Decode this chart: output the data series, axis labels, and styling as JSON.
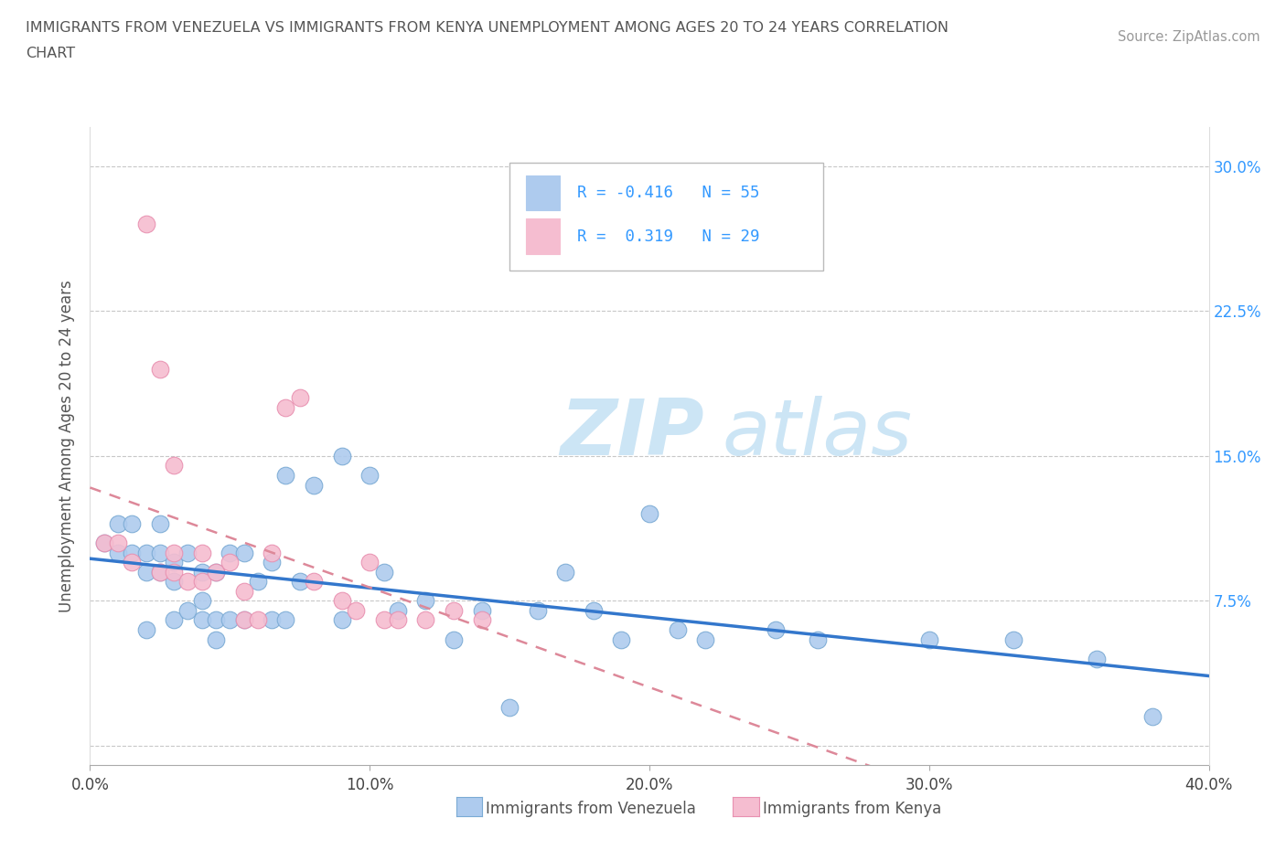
{
  "title_line1": "IMMIGRANTS FROM VENEZUELA VS IMMIGRANTS FROM KENYA UNEMPLOYMENT AMONG AGES 20 TO 24 YEARS CORRELATION",
  "title_line2": "CHART",
  "source_text": "Source: ZipAtlas.com",
  "ylabel": "Unemployment Among Ages 20 to 24 years",
  "xlim": [
    0.0,
    0.4
  ],
  "ylim": [
    -0.01,
    0.32
  ],
  "xticks": [
    0.0,
    0.1,
    0.2,
    0.3,
    0.4
  ],
  "xticklabels": [
    "0.0%",
    "10.0%",
    "20.0%",
    "30.0%",
    "40.0%"
  ],
  "yticks": [
    0.0,
    0.075,
    0.15,
    0.225,
    0.3
  ],
  "yticklabels": [
    "",
    "7.5%",
    "15.0%",
    "22.5%",
    "30.0%"
  ],
  "grid_color": "#c8c8c8",
  "background_color": "#ffffff",
  "venezuela_color": "#aecbee",
  "venezuela_edge": "#7aaad4",
  "kenya_color": "#f5bdd0",
  "kenya_edge": "#e890b0",
  "venezuela_R": -0.416,
  "venezuela_N": 55,
  "kenya_R": 0.319,
  "kenya_N": 29,
  "watermark_zip": "ZIP",
  "watermark_atlas": "atlas",
  "watermark_color": "#cce5f5",
  "trend_venezuela_color": "#3377cc",
  "trend_kenya_color": "#dd8899",
  "tick_color": "#3399ff",
  "venezuela_x": [
    0.005,
    0.01,
    0.01,
    0.015,
    0.015,
    0.02,
    0.02,
    0.02,
    0.025,
    0.025,
    0.025,
    0.03,
    0.03,
    0.03,
    0.035,
    0.035,
    0.04,
    0.04,
    0.04,
    0.045,
    0.045,
    0.045,
    0.05,
    0.05,
    0.055,
    0.055,
    0.06,
    0.065,
    0.065,
    0.07,
    0.07,
    0.075,
    0.08,
    0.09,
    0.09,
    0.1,
    0.105,
    0.11,
    0.12,
    0.13,
    0.14,
    0.15,
    0.16,
    0.17,
    0.18,
    0.19,
    0.2,
    0.21,
    0.22,
    0.245,
    0.26,
    0.3,
    0.33,
    0.36,
    0.38
  ],
  "venezuela_y": [
    0.105,
    0.1,
    0.115,
    0.1,
    0.115,
    0.1,
    0.09,
    0.06,
    0.115,
    0.1,
    0.09,
    0.095,
    0.085,
    0.065,
    0.1,
    0.07,
    0.09,
    0.075,
    0.065,
    0.09,
    0.065,
    0.055,
    0.1,
    0.065,
    0.1,
    0.065,
    0.085,
    0.095,
    0.065,
    0.14,
    0.065,
    0.085,
    0.135,
    0.15,
    0.065,
    0.14,
    0.09,
    0.07,
    0.075,
    0.055,
    0.07,
    0.02,
    0.07,
    0.09,
    0.07,
    0.055,
    0.12,
    0.06,
    0.055,
    0.06,
    0.055,
    0.055,
    0.055,
    0.045,
    0.015
  ],
  "kenya_x": [
    0.005,
    0.01,
    0.015,
    0.02,
    0.025,
    0.025,
    0.03,
    0.03,
    0.03,
    0.035,
    0.04,
    0.04,
    0.045,
    0.05,
    0.055,
    0.055,
    0.06,
    0.065,
    0.07,
    0.075,
    0.08,
    0.09,
    0.095,
    0.1,
    0.105,
    0.11,
    0.12,
    0.13,
    0.14
  ],
  "kenya_y": [
    0.105,
    0.105,
    0.095,
    0.27,
    0.195,
    0.09,
    0.145,
    0.1,
    0.09,
    0.085,
    0.1,
    0.085,
    0.09,
    0.095,
    0.08,
    0.065,
    0.065,
    0.1,
    0.175,
    0.18,
    0.085,
    0.075,
    0.07,
    0.095,
    0.065,
    0.065,
    0.065,
    0.07,
    0.065
  ]
}
